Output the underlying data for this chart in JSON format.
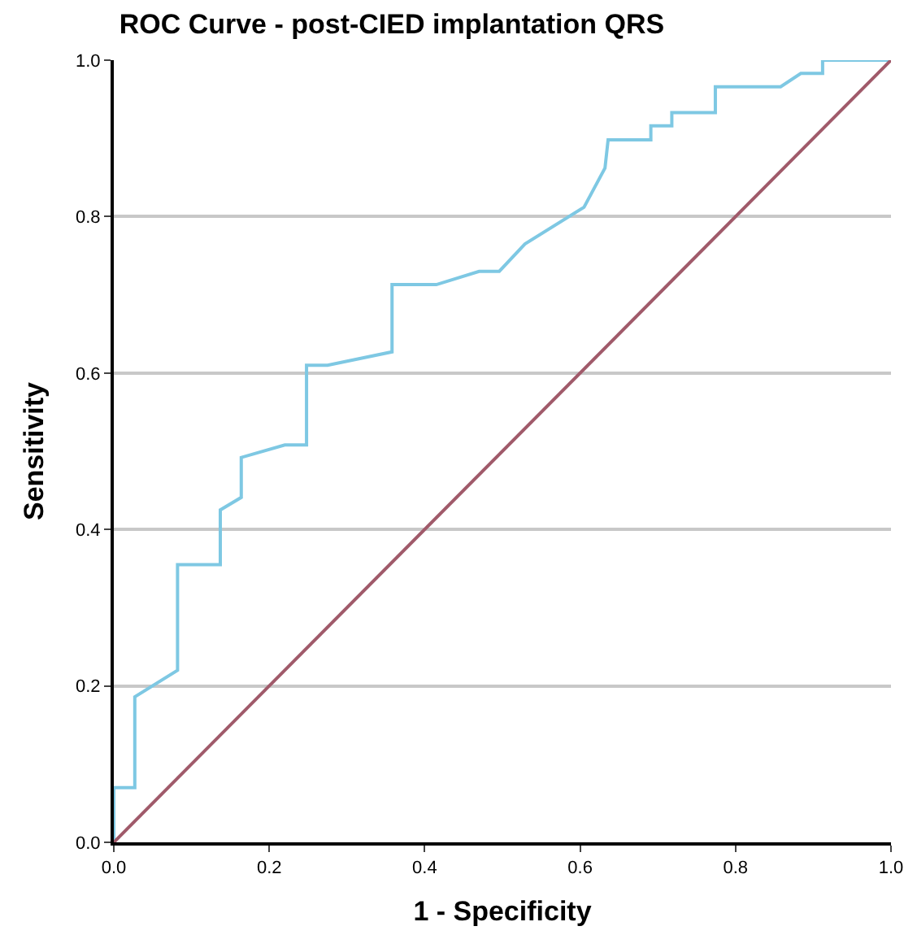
{
  "chart_data": {
    "type": "line",
    "title": "ROC Curve - post-CIED implantation QRS",
    "xlabel": "1 - Specificity",
    "ylabel": "Sensitivity",
    "xlim": [
      0,
      1
    ],
    "ylim": [
      0,
      1
    ],
    "xticks": [
      {
        "value": 0,
        "label": "0.0"
      },
      {
        "value": 0.2,
        "label": "0.2"
      },
      {
        "value": 0.4,
        "label": "0.4"
      },
      {
        "value": 0.6,
        "label": "0.6"
      },
      {
        "value": 0.8,
        "label": "0.8"
      },
      {
        "value": 1,
        "label": "1.0"
      }
    ],
    "yticks": [
      {
        "value": 0,
        "label": "0.0"
      },
      {
        "value": 0.2,
        "label": "0.2"
      },
      {
        "value": 0.4,
        "label": "0.4"
      },
      {
        "value": 0.6,
        "label": "0.6"
      },
      {
        "value": 0.8,
        "label": "0.8"
      },
      {
        "value": 1,
        "label": "1.0"
      }
    ],
    "grid": "y",
    "legend": false,
    "marker": "none",
    "line_style": "solid",
    "series": [
      {
        "color": "#7ec8e3",
        "x": [
          0,
          0,
          0.027,
          0.027,
          0.082,
          0.082,
          0.137,
          0.137,
          0.164,
          0.164,
          0.22,
          0.248,
          0.248,
          0.275,
          0.358,
          0.358,
          0.415,
          0.47,
          0.496,
          0.529,
          0.605,
          0.632,
          0.636,
          0.691,
          0.691,
          0.718,
          0.718,
          0.774,
          0.774,
          0.858,
          0.884,
          0.912,
          0.912,
          1.0
        ],
        "values": [
          0,
          0.07,
          0.07,
          0.186,
          0.22,
          0.355,
          0.355,
          0.425,
          0.441,
          0.492,
          0.508,
          0.508,
          0.61,
          0.61,
          0.627,
          0.713,
          0.713,
          0.73,
          0.73,
          0.765,
          0.812,
          0.862,
          0.898,
          0.898,
          0.916,
          0.916,
          0.933,
          0.933,
          0.966,
          0.966,
          0.983,
          0.983,
          1.0,
          1.0
        ]
      },
      {
        "color": "#a05a6a",
        "x": [
          0,
          1
        ],
        "values": [
          0,
          1
        ]
      }
    ]
  }
}
